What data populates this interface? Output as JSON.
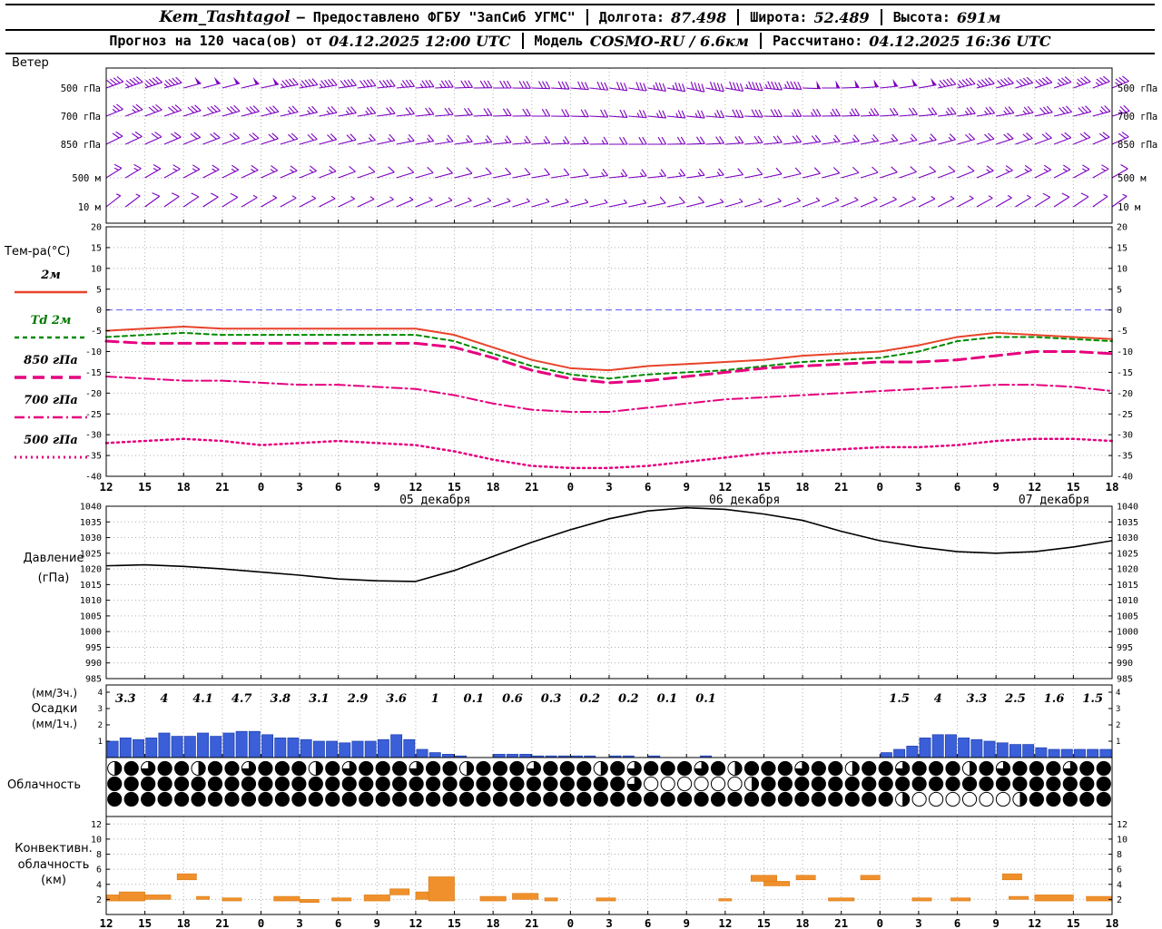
{
  "header": {
    "station": "Kem_Tashtagol",
    "provider": "— Предоставлено ФГБУ \"ЗапСиб УГМС\"",
    "lon_label": "Долгота:",
    "lon_value": "87.498",
    "lat_label": "Широта:",
    "lat_value": "52.489",
    "alt_label": "Высота:",
    "alt_value": "691м",
    "forecast_label": "Прогноз на 120 часа(ов) от",
    "forecast_value": "04.12.2025 12:00 UTC",
    "model_label": "Модель",
    "model_value": "COSMO-RU / 6.6км",
    "calc_label": "Рассчитано:",
    "calc_value": "04.12.2025 16:36 UTC"
  },
  "chart_data": {
    "type": "meteogram",
    "axes": {
      "hours_total": 78,
      "tick_step_hours": 3,
      "time_tick_labels": [
        "12",
        "15",
        "18",
        "21",
        "0",
        "3",
        "6",
        "9",
        "12",
        "15",
        "18",
        "21",
        "0",
        "3",
        "6",
        "9",
        "12",
        "15",
        "18",
        "21",
        "0",
        "3",
        "6",
        "9",
        "12",
        "15",
        "18"
      ],
      "date_labels": [
        {
          "label": "05 декабря",
          "hour": 25.5
        },
        {
          "label": "06 декабря",
          "hour": 49.5
        },
        {
          "label": "07 декабря",
          "hour": 73.5
        }
      ]
    },
    "wind": {
      "panel_label": "Ветер",
      "levels": [
        {
          "label": "500 гПа",
          "speeds": [
            22,
            24,
            25,
            26,
            25,
            24,
            22,
            20,
            18,
            17,
            16,
            15,
            15,
            16,
            18,
            20,
            22,
            24,
            25,
            26,
            26,
            25,
            24,
            22,
            20,
            19,
            18
          ],
          "dirs": [
            250,
            252,
            255,
            255,
            258,
            260,
            262,
            264,
            266,
            268,
            270,
            272,
            275,
            278,
            280,
            282,
            280,
            276,
            272,
            268,
            264,
            260,
            257,
            255,
            252,
            250,
            248
          ]
        },
        {
          "label": "700 гПа",
          "speeds": [
            14,
            15,
            16,
            16,
            15,
            14,
            13,
            12,
            12,
            11,
            10,
            10,
            11,
            12,
            13,
            14,
            15,
            15,
            14,
            13,
            12,
            12,
            13,
            14,
            15,
            15,
            14
          ],
          "dirs": [
            248,
            250,
            252,
            254,
            256,
            258,
            260,
            262,
            264,
            266,
            268,
            270,
            272,
            274,
            276,
            276,
            274,
            272,
            270,
            268,
            266,
            264,
            262,
            260,
            258,
            256,
            254
          ]
        },
        {
          "label": "850 гПа",
          "speeds": [
            10,
            11,
            12,
            12,
            11,
            10,
            10,
            9,
            9,
            8,
            8,
            8,
            9,
            10,
            10,
            11,
            11,
            10,
            10,
            9,
            9,
            9,
            10,
            10,
            11,
            11,
            10
          ],
          "dirs": [
            244,
            246,
            248,
            250,
            252,
            254,
            256,
            258,
            260,
            262,
            264,
            266,
            268,
            270,
            270,
            268,
            266,
            264,
            262,
            260,
            258,
            256,
            254,
            252,
            250,
            248,
            246
          ]
        },
        {
          "label": "500 м",
          "speeds": [
            8,
            8,
            9,
            9,
            8,
            8,
            7,
            7,
            6,
            6,
            6,
            7,
            7,
            8,
            8,
            8,
            7,
            7,
            6,
            6,
            6,
            7,
            7,
            8,
            8,
            8,
            7
          ],
          "dirs": [
            238,
            240,
            242,
            244,
            246,
            248,
            250,
            252,
            254,
            256,
            258,
            260,
            262,
            264,
            264,
            262,
            260,
            258,
            256,
            254,
            252,
            250,
            248,
            246,
            244,
            242,
            240
          ]
        },
        {
          "label": "10 м",
          "speeds": [
            4,
            5,
            5,
            5,
            4,
            4,
            4,
            3,
            3,
            3,
            3,
            4,
            4,
            4,
            5,
            5,
            4,
            4,
            3,
            3,
            3,
            4,
            4,
            4,
            5,
            5,
            4
          ],
          "dirs": [
            232,
            234,
            236,
            238,
            240,
            242,
            244,
            246,
            248,
            250,
            252,
            254,
            256,
            258,
            258,
            256,
            254,
            252,
            250,
            248,
            246,
            244,
            242,
            240,
            238,
            236,
            234
          ]
        }
      ]
    },
    "temperature": {
      "panel_label": "Тем-ра(°C)",
      "ylim": [
        -40,
        20
      ],
      "tick_step": 5,
      "series": [
        {
          "name": "2м",
          "color": "#e8432a",
          "label_color": "#000000",
          "style": "solid",
          "width": 2,
          "values": [
            -5,
            -4.5,
            -4,
            -4.5,
            -4.5,
            -4.5,
            -4.5,
            -4.5,
            -4.5,
            -6,
            -9,
            -12,
            -14,
            -14.5,
            -13.5,
            -13,
            -12.5,
            -12,
            -11,
            -10.5,
            -10,
            -8.5,
            -6.5,
            -5.5,
            -6,
            -6.5,
            -7
          ]
        },
        {
          "name": "Td 2м",
          "color": "#008a00",
          "label_color": "#007a00",
          "style": "dash",
          "width": 2,
          "values": [
            -6.5,
            -6,
            -5.5,
            -6,
            -6,
            -6,
            -6,
            -6,
            -6,
            -7.5,
            -10.5,
            -13.5,
            -15.5,
            -16.5,
            -15.5,
            -15,
            -14.5,
            -13.5,
            -12.5,
            -12,
            -11.5,
            -10,
            -7.5,
            -6.5,
            -6.5,
            -7,
            -7.5
          ]
        },
        {
          "name": "850 гПа",
          "color": "#e6007e",
          "label_color": "#000000",
          "style": "longdash",
          "width": 3,
          "values": [
            -7.5,
            -8,
            -8,
            -8,
            -8,
            -8,
            -8,
            -8,
            -8,
            -9,
            -11.5,
            -14.5,
            -16.5,
            -17.5,
            -17,
            -16,
            -15,
            -14,
            -13.5,
            -13,
            -12.5,
            -12.5,
            -12,
            -11,
            -10,
            -10,
            -10.5
          ]
        },
        {
          "name": "700 гПа",
          "color": "#e6007e",
          "label_color": "#000000",
          "style": "dashdot",
          "width": 2,
          "values": [
            -16,
            -16.5,
            -17,
            -17,
            -17.5,
            -18,
            -18,
            -18.5,
            -19,
            -20.5,
            -22.5,
            -24,
            -24.5,
            -24.5,
            -23.5,
            -22.5,
            -21.5,
            -21,
            -20.5,
            -20,
            -19.5,
            -19,
            -18.5,
            -18,
            -18,
            -18.5,
            -19.5
          ]
        },
        {
          "name": "500 гПа",
          "color": "#e6007e",
          "label_color": "#000000",
          "style": "dot",
          "width": 2.5,
          "values": [
            -32,
            -31.5,
            -31,
            -31.5,
            -32.5,
            -32,
            -31.5,
            -32,
            -32.5,
            -34,
            -36,
            -37.5,
            -38,
            -38,
            -37.5,
            -36.5,
            -35.5,
            -34.5,
            -34,
            -33.5,
            -33,
            -33,
            -32.5,
            -31.5,
            -31,
            -31,
            -31.5
          ]
        }
      ]
    },
    "pressure": {
      "label_line1": "Давление",
      "label_line2": "(гПа)",
      "ylim": [
        985,
        1040
      ],
      "tick_step": 5,
      "values": [
        1021,
        1021.3,
        1020.8,
        1020,
        1019,
        1018,
        1016.8,
        1016.2,
        1016,
        1019.5,
        1024,
        1028.5,
        1032.5,
        1036,
        1038.5,
        1039.5,
        1039,
        1037.5,
        1035.5,
        1032,
        1029,
        1027,
        1025.5,
        1025,
        1025.5,
        1027,
        1029
      ]
    },
    "precipitation": {
      "label_line1": "(мм/3ч.)",
      "label_line2": "Осадки",
      "label_line3": "(мм/1ч.)",
      "ticks": [
        1,
        2,
        3,
        4
      ],
      "three_hour_values": [
        3.3,
        4,
        4.1,
        4.7,
        3.8,
        3.1,
        2.9,
        3.6,
        1,
        0.1,
        0.6,
        0.3,
        0.2,
        0.2,
        0.1,
        0.1,
        0,
        0,
        0,
        0,
        1.5,
        4,
        3.3,
        2.5,
        1.6,
        1.5
      ],
      "hourly_values": [
        1.0,
        1.2,
        1.1,
        1.2,
        1.5,
        1.3,
        1.3,
        1.5,
        1.3,
        1.5,
        1.6,
        1.6,
        1.4,
        1.2,
        1.2,
        1.1,
        1.0,
        1.0,
        0.9,
        1.0,
        1.0,
        1.1,
        1.4,
        1.1,
        0.5,
        0.3,
        0.2,
        0.1,
        0,
        0,
        0.2,
        0.2,
        0.2,
        0.1,
        0.1,
        0.1,
        0.1,
        0.1,
        0,
        0.1,
        0.1,
        0,
        0.1,
        0,
        0,
        0,
        0.1,
        0,
        0,
        0,
        0,
        0,
        0,
        0,
        0,
        0,
        0,
        0,
        0,
        0,
        0.3,
        0.5,
        0.7,
        1.2,
        1.4,
        1.4,
        1.2,
        1.1,
        1.0,
        0.9,
        0.8,
        0.8,
        0.6,
        0.5,
        0.5,
        0.5,
        0.5,
        0.5
      ]
    },
    "cloudiness": {
      "label": "Облачность",
      "rows": [
        [
          0.5,
          1,
          0.75,
          1,
          1,
          0.5,
          1,
          1,
          0.75,
          1,
          1,
          1,
          0.5,
          1,
          0.75,
          1,
          1,
          1,
          0.75,
          1,
          1,
          0.5,
          1,
          1,
          1,
          0.75,
          1,
          1,
          1,
          0.5,
          1,
          0.75,
          1,
          1,
          1,
          0.75,
          1,
          0.5,
          1,
          1,
          1,
          0.75,
          1,
          1,
          0.5,
          1,
          1,
          0.75,
          1,
          1,
          1,
          0.5,
          1,
          0.75,
          1,
          1,
          1,
          0.75,
          1,
          1
        ],
        [
          1,
          1,
          1,
          1,
          1,
          1,
          1,
          1,
          1,
          1,
          1,
          1,
          1,
          1,
          1,
          1,
          1,
          1,
          1,
          1,
          1,
          1,
          1,
          1,
          1,
          1,
          1,
          1,
          1,
          1,
          1,
          0.75,
          0,
          0,
          0,
          0,
          0,
          0,
          0.5,
          1,
          1,
          1,
          1,
          1,
          1,
          1,
          1,
          1,
          1,
          1,
          1,
          1,
          1,
          1,
          1,
          1,
          1,
          1,
          1,
          1
        ],
        [
          1,
          1,
          1,
          1,
          1,
          1,
          1,
          1,
          1,
          1,
          1,
          1,
          1,
          1,
          1,
          1,
          1,
          1,
          1,
          1,
          1,
          1,
          1,
          1,
          1,
          1,
          1,
          1,
          1,
          1,
          1,
          1,
          1,
          1,
          1,
          1,
          1,
          1,
          1,
          1,
          1,
          1,
          1,
          1,
          1,
          1,
          1,
          0.5,
          0,
          0,
          0,
          0,
          0,
          0,
          0.5,
          1,
          1,
          1,
          1,
          1
        ]
      ]
    },
    "convective": {
      "label_line1": "Конвективн.",
      "label_line2": "облачность",
      "label_line3": "(км)",
      "ticks": [
        2,
        4,
        6,
        8,
        10,
        12
      ],
      "ylim": [
        0,
        13
      ],
      "blocks": [
        [
          0,
          1,
          1.8,
          2.6
        ],
        [
          1,
          3,
          1.8,
          3.0
        ],
        [
          3,
          5,
          2.0,
          2.6
        ],
        [
          5.5,
          7,
          4.6,
          5.4
        ],
        [
          7,
          8,
          2.0,
          2.4
        ],
        [
          9,
          10.5,
          1.8,
          2.2
        ],
        [
          13,
          15,
          1.8,
          2.4
        ],
        [
          15,
          16.5,
          1.6,
          2.0
        ],
        [
          17.5,
          19,
          1.8,
          2.2
        ],
        [
          20,
          22,
          1.8,
          2.6
        ],
        [
          22,
          23.5,
          2.6,
          3.4
        ],
        [
          24,
          25,
          2.0,
          3.0
        ],
        [
          25,
          27,
          1.8,
          5.0
        ],
        [
          29,
          31,
          1.8,
          2.4
        ],
        [
          31.5,
          33.5,
          2.0,
          2.8
        ],
        [
          34,
          35,
          1.8,
          2.2
        ],
        [
          38,
          39.5,
          1.8,
          2.2
        ],
        [
          47.5,
          48.5,
          1.8,
          2.1
        ],
        [
          50,
          52,
          4.4,
          5.2
        ],
        [
          51,
          53,
          3.8,
          4.4
        ],
        [
          53.5,
          55,
          4.6,
          5.2
        ],
        [
          56,
          58,
          1.8,
          2.2
        ],
        [
          58.5,
          60,
          4.6,
          5.2
        ],
        [
          62.5,
          64,
          1.8,
          2.2
        ],
        [
          65.5,
          67,
          1.8,
          2.2
        ],
        [
          69.5,
          71,
          4.6,
          5.4
        ],
        [
          70,
          71.5,
          2.0,
          2.4
        ],
        [
          72,
          75,
          1.8,
          2.6
        ],
        [
          76,
          78,
          1.8,
          2.4
        ]
      ]
    },
    "colors": {
      "wind": "#7d00c0",
      "pressure": "#000000",
      "precip_fill": "#3a5fd8",
      "precip_edge": "#1e3fae",
      "convective": "#f0902c",
      "convective_edge": "#d97b14",
      "cloud": "#000000",
      "grid": "#b0b0b0",
      "zero_line": "#5555ff",
      "axis": "#000000"
    }
  }
}
